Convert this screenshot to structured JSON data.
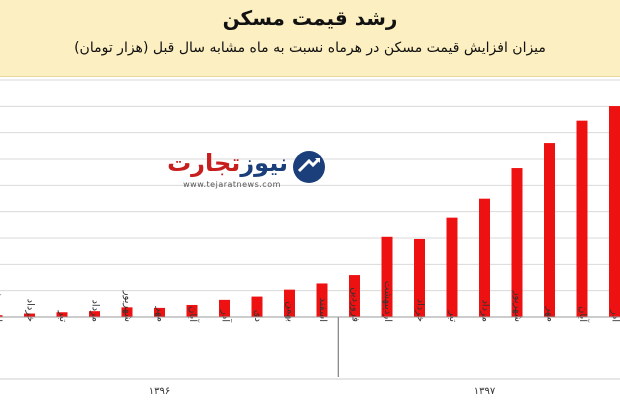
{
  "title": "رشد قیمت مسکن",
  "subtitle": "میزان افزایش قیمت مسکن در هرماه نسبت به ماه مشابه سال قبل (هزار تومان)",
  "logo": {
    "name_part1": "تجارت",
    "name_part2": "نیوز",
    "url": "www.tejaratnews.com"
  },
  "colors": {
    "bar": "#ee1111",
    "header_bg": "#fcefc1",
    "grid": "#d9d9d9"
  },
  "chart_data": {
    "type": "bar",
    "categories": [
      "اردیبهشت",
      "خرداد",
      "تیر",
      "مرداد",
      "شهریور",
      "مهر",
      "آبان",
      "آذر",
      "دی",
      "بهمن",
      "اسفند",
      "فروردین",
      "اردیبهشت",
      "خرداد",
      "تیر",
      "مرداد",
      "شهریور",
      "مهر",
      "آبان",
      "آذر"
    ],
    "values": [
      10,
      19,
      26,
      32,
      53,
      50,
      66,
      94,
      112,
      150,
      184,
      230,
      440,
      428,
      545,
      649,
      817,
      954,
      1077,
      1157
    ],
    "ylim": [
      0,
      1300
    ],
    "grid": true,
    "legend": "none",
    "groups": [
      {
        "label": "۱۳۹۶",
        "start": 0,
        "end": 10
      },
      {
        "label": "۱۳۹۷",
        "start": 11,
        "end": 19
      }
    ]
  }
}
